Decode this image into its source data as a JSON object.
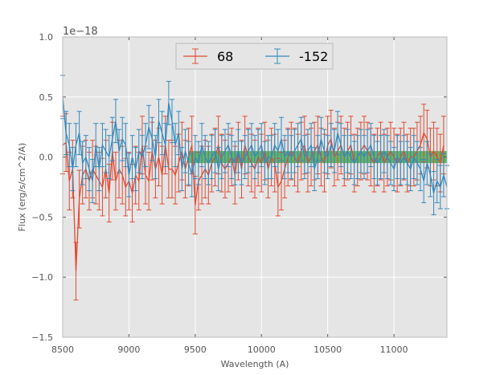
{
  "chart_data": {
    "type": "line",
    "subtype": "errorbar",
    "xlabel": "Wavelength (A)",
    "ylabel": "Flux (erg/s/cm^2/A)",
    "offset_text": "1e−18",
    "xlim": [
      8500,
      11400
    ],
    "ylim": [
      -1.5,
      1.0
    ],
    "xticks": [
      8500,
      9000,
      9500,
      10000,
      10500,
      11000
    ],
    "xtick_labels": [
      "8500",
      "9000",
      "9500",
      "10000",
      "10500",
      "11000"
    ],
    "yticks": [
      -1.5,
      -1.0,
      -0.5,
      0.0,
      0.5,
      1.0
    ],
    "ytick_labels": [
      "−1.5",
      "−1.0",
      "−0.5",
      "0.0",
      "0.5",
      "1.0"
    ],
    "grid": true,
    "legend_position": "top-center",
    "background_color": "#e5e5e5",
    "band": {
      "color": "#2ca02c",
      "x_start": 9450,
      "x_end": 11400,
      "y_low": -0.05,
      "y_high": 0.05
    },
    "series": [
      {
        "name": "68",
        "color": "#e24a33",
        "x_start": 8500,
        "x_step": 25,
        "y": [
          0.1,
          0.12,
          -0.2,
          -0.1,
          -0.95,
          -0.35,
          -0.15,
          -0.1,
          -0.2,
          -0.1,
          -0.15,
          -0.2,
          -0.25,
          -0.1,
          -0.3,
          0.05,
          -0.2,
          -0.1,
          -0.15,
          -0.25,
          -0.2,
          -0.3,
          -0.15,
          -0.2,
          0.1,
          -0.15,
          -0.2,
          0.05,
          -0.1,
          0.0,
          -0.15,
          0.1,
          -0.1,
          -0.1,
          -0.15,
          -0.05,
          0.05,
          -0.1,
          0.0,
          0.1,
          -0.4,
          -0.2,
          -0.15,
          -0.1,
          -0.15,
          -0.05,
          0.0,
          0.1,
          -0.05,
          -0.1,
          -0.05,
          0.0,
          -0.15,
          0.05,
          -0.1,
          0.1,
          0.0,
          -0.05,
          -0.1,
          0.0,
          -0.05,
          0.05,
          -0.1,
          0.0,
          -0.05,
          -0.25,
          -0.2,
          -0.1,
          0.0,
          0.05,
          0.0,
          -0.05,
          0.05,
          0.1,
          -0.05,
          0.0,
          0.05,
          0.1,
          0.0,
          -0.05,
          0.1,
          0.15,
          0.0,
          0.05,
          0.1,
          0.0,
          0.05,
          0.1,
          -0.05,
          0.0,
          0.05,
          0.1,
          0.05,
          0.0,
          -0.05,
          0.0,
          0.05,
          -0.05,
          0.0,
          0.05,
          0.0,
          -0.05,
          0.0,
          0.05,
          -0.05,
          0.0,
          0.0,
          0.05,
          0.1,
          0.2,
          0.15,
          0.0,
          0.05,
          0.0,
          -0.05,
          0.1
        ],
        "yerr": 0.24
      },
      {
        "name": "-152",
        "color": "#348abd",
        "x_start": 8500,
        "x_step": 25,
        "y": [
          0.5,
          0.2,
          0.1,
          -0.1,
          0.1,
          0.2,
          -0.05,
          0.0,
          -0.1,
          -0.2,
          0.1,
          -0.1,
          0.1,
          0.05,
          0.0,
          0.15,
          0.3,
          0.05,
          0.15,
          0.1,
          -0.15,
          0.0,
          -0.1,
          0.05,
          0.0,
          0.1,
          0.25,
          0.15,
          0.0,
          0.3,
          0.2,
          0.1,
          0.45,
          0.3,
          0.1,
          0.2,
          -0.1,
          0.05,
          -0.05,
          -0.15,
          0.0,
          -0.05,
          0.1,
          0.0,
          -0.05,
          0.0,
          0.05,
          -0.1,
          0.0,
          0.05,
          0.1,
          0.0,
          -0.05,
          0.05,
          -0.05,
          0.0,
          0.05,
          0.1,
          0.0,
          0.05,
          0.1,
          -0.05,
          0.0,
          0.0,
          0.1,
          0.05,
          0.15,
          0.0,
          0.05,
          0.0,
          0.05,
          0.1,
          0.15,
          0.0,
          0.05,
          0.1,
          -0.1,
          0.0,
          0.15,
          0.05,
          0.0,
          0.1,
          0.05,
          0.2,
          0.1,
          0.0,
          0.05,
          0.0,
          -0.05,
          0.0,
          0.05,
          0.0,
          0.05,
          0.1,
          0.0,
          -0.05,
          0.0,
          0.05,
          0.0,
          -0.05,
          -0.1,
          0.0,
          -0.05,
          0.0,
          -0.05,
          -0.1,
          0.0,
          -0.05,
          -0.1,
          -0.2,
          -0.05,
          -0.15,
          -0.3,
          -0.2,
          -0.25,
          -0.15,
          -0.25
        ],
        "yerr": 0.18
      }
    ]
  }
}
